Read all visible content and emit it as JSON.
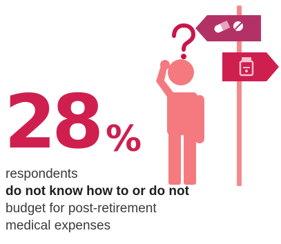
{
  "colors": {
    "accent": "#cf1f4f",
    "figure": "#f47a80",
    "pole": "#f28a8d",
    "sign_top": "#b33266",
    "sign_bottom": "#cf1f4f",
    "question_mark": "#c8174a",
    "text": "#3a3a3a"
  },
  "icons": {
    "question": "question-mark-icon",
    "person": "thinking-person-icon",
    "signpost": "signpost-icon",
    "pills": "pills-icon",
    "medicine_bottle": "medicine-bottle-icon"
  },
  "stat": {
    "value": "28",
    "unit": "%"
  },
  "caption": {
    "line1": "respondents",
    "line2": "do not know how to or do not",
    "line3": "budget for post-retirement",
    "line4": "medical expenses"
  }
}
